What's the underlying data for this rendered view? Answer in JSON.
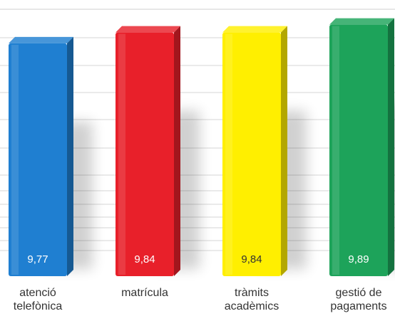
{
  "chart_data": {
    "type": "bar",
    "categories": [
      [
        "atenció",
        "telefònica"
      ],
      [
        "matrícula"
      ],
      [
        "tràmits",
        "acadèmics"
      ],
      [
        "gestió de",
        "pagaments"
      ]
    ],
    "values": [
      9.77,
      9.84,
      9.84,
      9.89
    ],
    "value_labels": [
      "9,77",
      "9,84",
      "9,84",
      "9,89"
    ],
    "colors": [
      "#1f7fd1",
      "#e8202a",
      "#ffef00",
      "#1da35a"
    ],
    "title": "",
    "xlabel": "",
    "ylabel": "",
    "grid": true,
    "style": "3d"
  }
}
